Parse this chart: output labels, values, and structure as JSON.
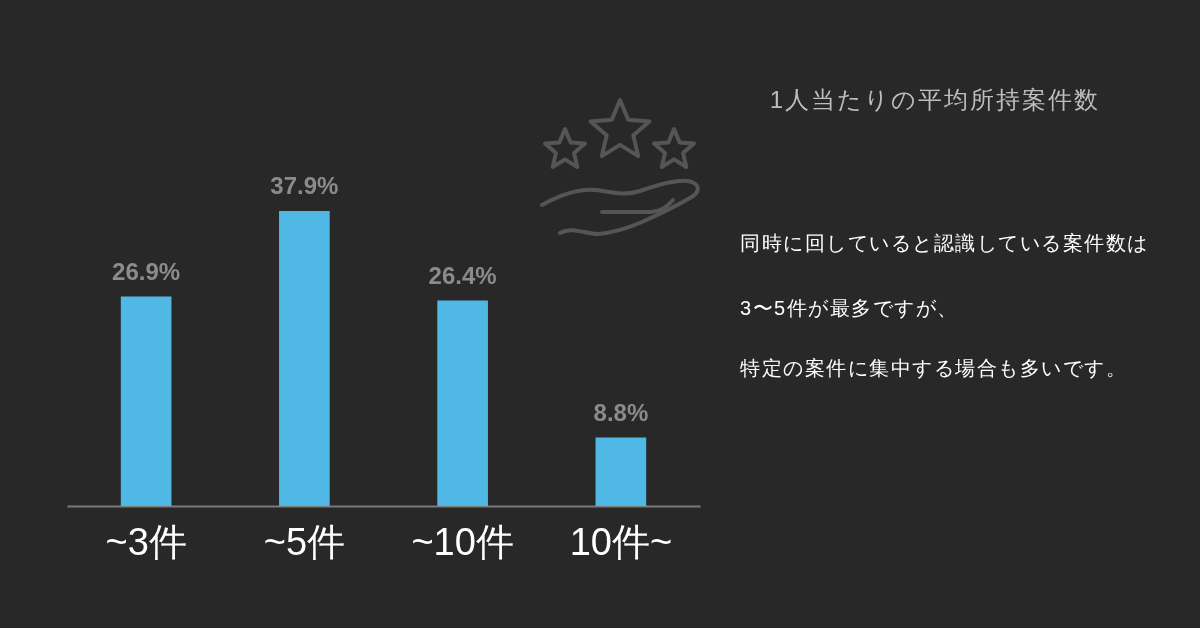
{
  "chart_data": {
    "type": "bar",
    "title": "1人当たりの平均所持案件数",
    "categories": [
      "~3件",
      "~5件",
      "~10件",
      "10件~"
    ],
    "values": [
      26.9,
      37.9,
      26.4,
      8.8
    ],
    "value_labels": [
      "26.9%",
      "37.9%",
      "26.4%",
      "8.8%"
    ],
    "color": "#50b8e4",
    "tick_labels": "x",
    "annotations": [
      "同時に回していると認識している案件数は",
      "3〜5件が最多ですが、",
      "特定の案件に集中する場合も多いです。"
    ]
  }
}
